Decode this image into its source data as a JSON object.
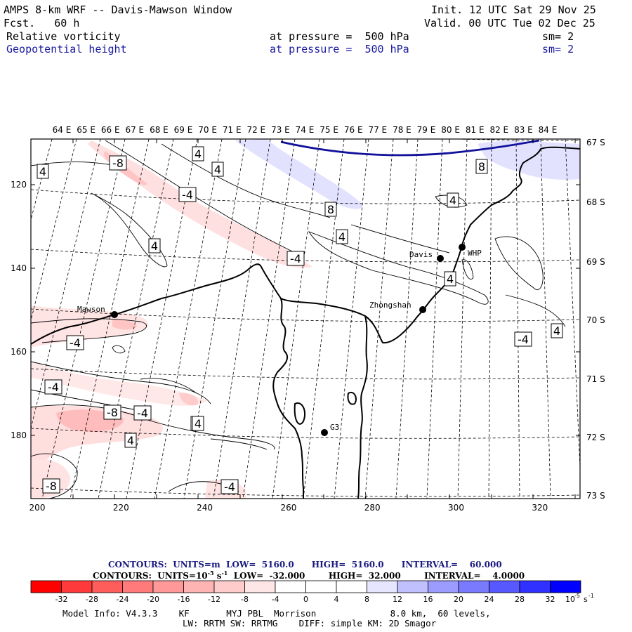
{
  "header": {
    "title": "AMPS 8-km WRF -- Davis-Mawson Window",
    "init": "Init. 12 UTC Sat 29 Nov 25",
    "fcst": "Fcst.   60 h",
    "valid": "Valid. 00 UTC Tue 02 Dec 25",
    "field1": "Relative vorticity",
    "field1_level": "at pressure =  500 hPa",
    "field1_sm": "sm= 2",
    "field2": "Geopotential height",
    "field2_level": "at pressure =  500 hPa",
    "field2_sm": "sm= 2"
  },
  "map": {
    "lon_labels": [
      "64 E",
      "65 E",
      "66 E",
      "67 E",
      "68 E",
      "69 E",
      "70 E",
      "71 E",
      "72 E",
      "73 E",
      "74 E",
      "75 E",
      "76 E",
      "77 E",
      "78 E",
      "79 E",
      "80 E",
      "81 E",
      "82 E",
      "83 E",
      "84 E"
    ],
    "lat_labels": [
      "67 S",
      "68 S",
      "69 S",
      "70 S",
      "71 S",
      "72 S",
      "73 S"
    ],
    "x_ticks": [
      "200",
      "220",
      "240",
      "260",
      "280",
      "300",
      "320"
    ],
    "y_ticks": [
      "120",
      "140",
      "160",
      "180"
    ],
    "stations": [
      {
        "name": "Mawson"
      },
      {
        "name": "Davis"
      },
      {
        "name": "WHP"
      },
      {
        "name": "Zhongshan"
      },
      {
        "name": "G3"
      }
    ],
    "contour_labels": [
      "4",
      "4",
      "4",
      "-8",
      "-4",
      "4",
      "8",
      "4",
      "8",
      "4",
      "-4",
      "4",
      "-4",
      "-4",
      "-4",
      "-8",
      "-4",
      "4",
      "4",
      "-8",
      "-4",
      "4",
      "4"
    ]
  },
  "footer": {
    "contours1": "CONTOURS:  UNITS=m  LOW=  5160.0      HIGH=  5160.0      INTERVAL=    60.000",
    "contours2_a": "CONTOURS:  UNITS=10",
    "contours2_exp": "-5",
    "contours2_b": " s",
    "contours2_exp2": "-1",
    "contours2_c": "  LOW=  -32.000        HIGH=  32.000        INTERVAL=    4.0000",
    "colorbar_labels": [
      "-32",
      "-28",
      "-24",
      "-20",
      "-16",
      "-12",
      "-8",
      "-4",
      "0",
      "4",
      "8",
      "12",
      "16",
      "20",
      "24",
      "28",
      "32"
    ],
    "colorbar_unit": "10",
    "colorbar_unit_exp": "-5",
    "colorbar_unit_b": "s",
    "colorbar_unit_exp2": "-1",
    "colorbar_colors": [
      "#ff0000",
      "#ff3a3a",
      "#ff5c5c",
      "#ff7a7a",
      "#ff9898",
      "#ffb4b4",
      "#ffcccc",
      "#ffe6e6",
      "#ffffff",
      "#ffffff",
      "#e6e6ff",
      "#c0c0ff",
      "#9c9cff",
      "#7a7aff",
      "#5858ff",
      "#3030ff",
      "#0000ff"
    ],
    "model_info1": "Model Info: V4.3.3    KF       MYJ PBL  Morrison              8.0 km,  60 levels,",
    "model_info2": "LW: RRTM SW: RRTMG    DIFF: simple KM: 2D Smagor"
  }
}
